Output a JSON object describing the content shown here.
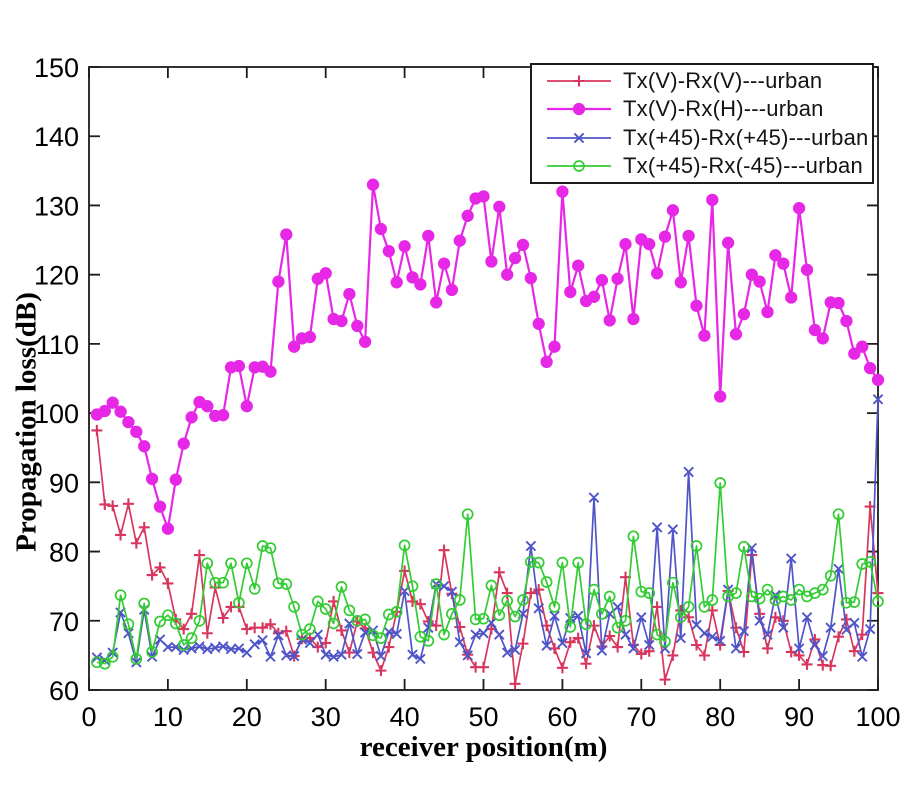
{
  "figure": {
    "background": "#ffffff",
    "frame_color": "#1c1c1c"
  },
  "chart_data": {
    "type": "line",
    "title": "",
    "xlabel": "receiver position(m)",
    "ylabel": "Propagation loss(dB)",
    "xlim": [
      0,
      100
    ],
    "ylim": [
      60,
      150
    ],
    "xticks": [
      0,
      10,
      20,
      30,
      40,
      50,
      60,
      70,
      80,
      90,
      100
    ],
    "yticks": [
      60,
      70,
      80,
      90,
      100,
      110,
      120,
      130,
      140,
      150
    ],
    "grid": false,
    "legend_position": "top-right-inside",
    "x": [
      1,
      2,
      3,
      4,
      5,
      6,
      7,
      8,
      9,
      10,
      11,
      12,
      13,
      14,
      15,
      16,
      17,
      18,
      19,
      20,
      21,
      22,
      23,
      24,
      25,
      26,
      27,
      28,
      29,
      30,
      31,
      32,
      33,
      34,
      35,
      36,
      37,
      38,
      39,
      40,
      41,
      42,
      43,
      44,
      45,
      46,
      47,
      48,
      49,
      50,
      51,
      52,
      53,
      54,
      55,
      56,
      57,
      58,
      59,
      60,
      61,
      62,
      63,
      64,
      65,
      66,
      67,
      68,
      69,
      70,
      71,
      72,
      73,
      74,
      75,
      76,
      77,
      78,
      79,
      80,
      81,
      82,
      83,
      84,
      85,
      86,
      87,
      88,
      89,
      90,
      91,
      92,
      93,
      94,
      95,
      96,
      97,
      98,
      99,
      100
    ],
    "series": [
      {
        "name": "Tx(V)-Rx(V)---urban",
        "color": "#d9365e",
        "marker": "plus",
        "values": [
          97.5,
          86.8,
          86.6,
          82.4,
          86.9,
          81.2,
          83.5,
          76.6,
          77.7,
          75.4,
          70.2,
          68.8,
          71.0,
          79.5,
          68.2,
          74.8,
          70.4,
          72.0,
          72.0,
          68.8,
          69.0,
          69.0,
          69.5,
          68.2,
          68.5,
          64.9,
          67.4,
          67.5,
          66.2,
          66.8,
          72.8,
          68.6,
          65.4,
          69.9,
          68.9,
          65.4,
          62.8,
          66.2,
          71.3,
          77.2,
          72.8,
          72.4,
          69.9,
          69.3,
          80.2,
          73.9,
          69.1,
          65.1,
          63.3,
          63.3,
          68.8,
          77.0,
          74.0,
          60.9,
          66.7,
          74.0,
          74.5,
          69.3,
          66.0,
          63.2,
          66.9,
          67.5,
          63.8,
          69.3,
          66.3,
          67.8,
          66.2,
          76.3,
          66.5,
          65.2,
          65.6,
          72.0,
          61.5,
          65.0,
          71.5,
          70.5,
          66.5,
          65.0,
          71.5,
          66.5,
          74.3,
          69.0,
          65.5,
          79.5,
          71.0,
          66.0,
          70.5,
          70.0,
          65.5,
          65.0,
          63.7,
          67.3,
          63.6,
          63.5,
          67.7,
          70.2,
          65.6,
          68.0,
          86.5,
          74.0
        ]
      },
      {
        "name": "Tx(V)-Rx(H)---urban",
        "color": "#e628e6",
        "marker": "filled-circle",
        "values": [
          99.8,
          100.3,
          101.5,
          100.2,
          98.7,
          97.3,
          95.2,
          90.5,
          86.5,
          83.3,
          90.4,
          95.6,
          99.4,
          101.6,
          101.0,
          99.6,
          99.7,
          106.6,
          106.8,
          101.0,
          106.6,
          106.7,
          106.0,
          119.0,
          125.8,
          109.6,
          110.8,
          111.0,
          119.4,
          120.2,
          113.6,
          113.3,
          117.2,
          112.6,
          110.3,
          133.0,
          126.6,
          123.4,
          118.9,
          124.1,
          119.6,
          118.6,
          125.6,
          116.0,
          121.6,
          117.8,
          124.9,
          128.5,
          131.0,
          131.3,
          121.9,
          129.8,
          120.0,
          122.4,
          124.3,
          119.5,
          112.9,
          107.4,
          109.6,
          132.0,
          117.5,
          121.3,
          116.2,
          116.8,
          119.2,
          113.4,
          119.4,
          124.4,
          113.6,
          125.1,
          124.4,
          120.2,
          125.5,
          129.3,
          118.9,
          125.6,
          115.5,
          111.2,
          130.8,
          102.4,
          124.6,
          111.4,
          114.3,
          120.0,
          119.0,
          114.6,
          122.8,
          121.6,
          116.7,
          129.6,
          120.7,
          112.0,
          110.8,
          116.0,
          115.9,
          113.3,
          108.6,
          109.6,
          106.5,
          104.8
        ]
      },
      {
        "name": "Tx(+45)-Rx(+45)---urban",
        "color": "#4f55c8",
        "marker": "x",
        "values": [
          64.7,
          64.3,
          65.4,
          71.2,
          68.2,
          64.0,
          71.6,
          64.8,
          67.3,
          66.2,
          66.2,
          65.8,
          66.0,
          66.3,
          65.9,
          66.1,
          66.3,
          65.9,
          66.0,
          65.4,
          66.6,
          67.2,
          64.8,
          67.9,
          65.0,
          64.9,
          67.3,
          66.8,
          68.0,
          65.1,
          64.8,
          65.1,
          69.6,
          65.2,
          68.3,
          68.6,
          64.9,
          68.4,
          68.1,
          74.3,
          65.1,
          64.5,
          69.0,
          75.3,
          75.0,
          74.2,
          66.9,
          65.0,
          68.0,
          68.2,
          69.7,
          68.0,
          65.4,
          65.8,
          71.0,
          80.8,
          71.8,
          66.4,
          70.7,
          66.8,
          70.4,
          70.7,
          65.3,
          87.8,
          65.7,
          71.0,
          72.0,
          68.0,
          66.0,
          70.5,
          66.5,
          83.5,
          66.0,
          83.2,
          67.5,
          91.5,
          69.4,
          68.2,
          67.7,
          67.1,
          74.5,
          66.0,
          68.5,
          80.5,
          70.0,
          68.0,
          73.7,
          69.0,
          79.0,
          66.0,
          70.5,
          66.5,
          64.9,
          69.0,
          77.5,
          68.7,
          69.7,
          64.8,
          68.8,
          102.0
        ]
      },
      {
        "name": "Tx(+45)-Rx(-45)---urban",
        "color": "#33cc33",
        "marker": "open-circle",
        "values": [
          64.0,
          63.8,
          64.8,
          73.7,
          69.5,
          64.5,
          72.5,
          65.5,
          69.9,
          70.8,
          69.6,
          66.5,
          67.5,
          70.0,
          78.3,
          75.5,
          75.5,
          78.3,
          72.6,
          78.3,
          74.6,
          80.8,
          80.5,
          75.4,
          75.3,
          72.0,
          68.0,
          68.8,
          72.8,
          71.7,
          69.6,
          74.9,
          71.5,
          70.0,
          70.2,
          67.9,
          67.5,
          70.9,
          71.3,
          80.9,
          75.0,
          67.7,
          67.1,
          75.3,
          68.0,
          71.0,
          73.0,
          85.4,
          70.2,
          70.3,
          75.1,
          70.8,
          72.9,
          70.6,
          73.0,
          78.5,
          78.4,
          75.6,
          72.0,
          78.4,
          69.1,
          78.4,
          69.5,
          74.5,
          71.0,
          73.5,
          69.0,
          70.0,
          82.2,
          74.2,
          74.0,
          68.0,
          67.0,
          75.5,
          70.5,
          72.0,
          80.8,
          72.0,
          73.0,
          89.9,
          73.5,
          74.0,
          80.7,
          73.5,
          73.2,
          74.5,
          73.0,
          73.5,
          73.0,
          74.5,
          73.5,
          74.0,
          74.5,
          76.5,
          85.4,
          72.6,
          72.7,
          78.2,
          78.5,
          72.8
        ]
      }
    ]
  }
}
